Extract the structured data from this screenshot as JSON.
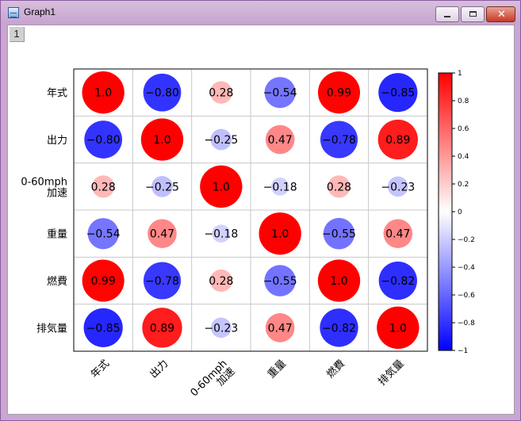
{
  "window": {
    "title": "Graph1",
    "layer_label": "1",
    "close_glyph": "✕"
  },
  "chart_data": {
    "type": "heatmap",
    "variables": [
      "年式",
      "出力",
      "0-60mph\n加速",
      "重量",
      "燃費",
      "排気量"
    ],
    "matrix": [
      [
        1.0,
        -0.8,
        0.28,
        -0.54,
        0.99,
        -0.85
      ],
      [
        -0.8,
        1.0,
        -0.25,
        0.47,
        -0.78,
        0.89
      ],
      [
        0.28,
        -0.25,
        1.0,
        -0.18,
        0.28,
        -0.23
      ],
      [
        -0.54,
        0.47,
        -0.18,
        1.0,
        -0.55,
        0.47
      ],
      [
        0.99,
        -0.78,
        0.28,
        -0.55,
        1.0,
        -0.82
      ],
      [
        -0.85,
        0.89,
        -0.23,
        0.47,
        -0.82,
        1.0
      ]
    ],
    "value_labels": [
      [
        "1.0",
        "-0.80",
        "0.28",
        "-0.54",
        "0.99",
        "-0.85"
      ],
      [
        "-0.80",
        "1.0",
        "-0.25",
        "0.47",
        "-0.78",
        "0.89"
      ],
      [
        "0.28",
        "-0.25",
        "1.0",
        "-0.18",
        "0.28",
        "-0.23"
      ],
      [
        "-0.54",
        "0.47",
        "-0.18",
        "1.0",
        "-0.55",
        "0.47"
      ],
      [
        "0.99",
        "-0.78",
        "0.28",
        "-0.55",
        "1.0",
        "-0.82"
      ],
      [
        "-0.85",
        "0.89",
        "-0.23",
        "0.47",
        "-0.82",
        "1.0"
      ]
    ],
    "marker": "circle sized by |r|",
    "color_scale": {
      "min": -1,
      "max": 1,
      "min_color": "#0000ff",
      "mid_color": "#ffffff",
      "max_color": "#ff0000"
    },
    "colorbar_ticks": [
      {
        "value": 1,
        "label": "1"
      },
      {
        "value": 0.8,
        "label": "0.8"
      },
      {
        "value": 0.6,
        "label": "0.6"
      },
      {
        "value": 0.4,
        "label": "0.4"
      },
      {
        "value": 0.2,
        "label": "0.2"
      },
      {
        "value": 0,
        "label": "0"
      },
      {
        "value": -0.2,
        "label": "-0.2"
      },
      {
        "value": -0.4,
        "label": "-0.4"
      },
      {
        "value": -0.6,
        "label": "-0.6"
      },
      {
        "value": -0.8,
        "label": "-0.8"
      },
      {
        "value": -1,
        "label": "-1"
      }
    ],
    "grid": true,
    "legend": "right"
  }
}
